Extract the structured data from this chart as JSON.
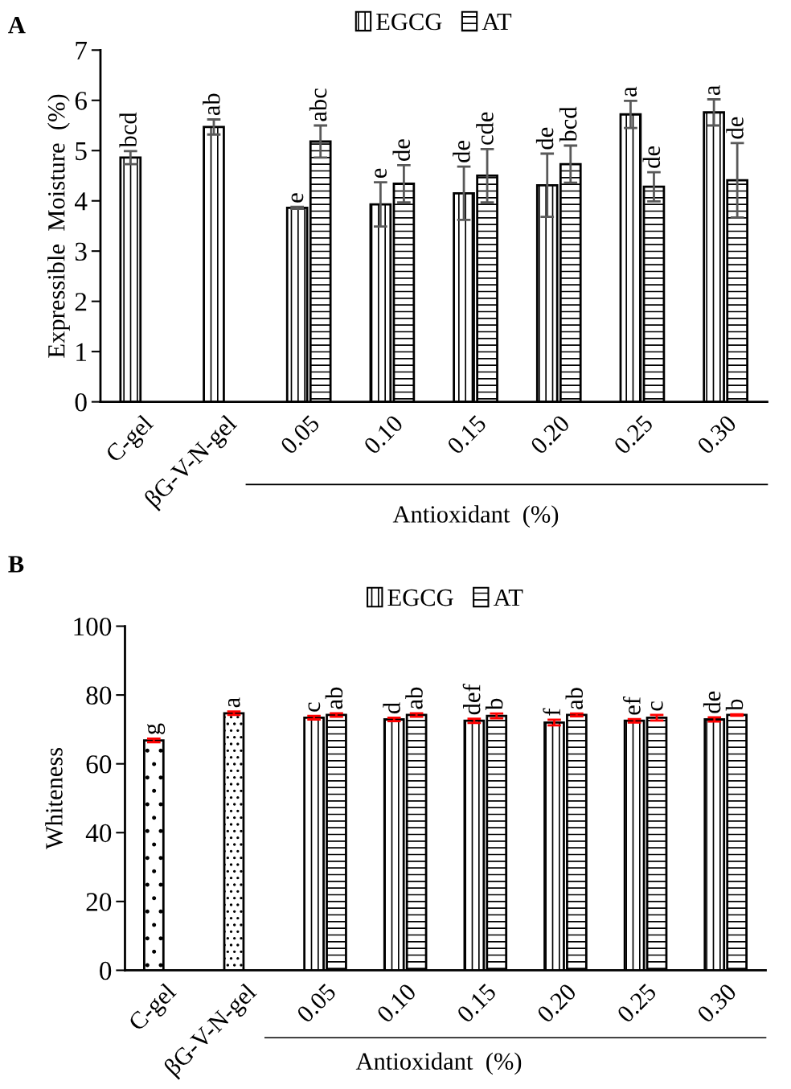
{
  "chart_data": [
    {
      "type": "bar",
      "title": "A",
      "ylabel": "Expressible  Moisture  (%)",
      "xlabel": "Antioxidant  (%)",
      "categories": [
        "C-gel",
        "βG-V-N-gel",
        "0.05",
        "0.10",
        "0.15",
        "0.20",
        "0.25",
        "0.30"
      ],
      "series": [
        {
          "name": "EGCG",
          "color": "#000000",
          "values": [
            4.86,
            5.47,
            3.86,
            3.93,
            4.15,
            4.31,
            5.72,
            5.76
          ],
          "errors": [
            0.13,
            0.15,
            0.02,
            0.44,
            0.53,
            0.63,
            0.27,
            0.26
          ],
          "value_labels": [
            "bcd",
            "ab",
            "e",
            "e",
            "de",
            "de",
            "a",
            "a"
          ]
        },
        {
          "name": "AT",
          "color": "#000000",
          "values": [
            null,
            null,
            5.18,
            4.34,
            4.5,
            4.73,
            4.28,
            4.41
          ],
          "errors": [
            null,
            null,
            0.32,
            0.37,
            0.53,
            0.37,
            0.29,
            0.74
          ],
          "value_labels": [
            null,
            null,
            "abc",
            "de",
            "cde",
            "bcd",
            "de",
            "de"
          ]
        }
      ],
      "ylim": [
        0,
        7
      ],
      "yticks": [
        0,
        1,
        2,
        3,
        4,
        5,
        6,
        7
      ],
      "legend": "top",
      "grid": false
    },
    {
      "type": "bar",
      "title": "B",
      "ylabel": "Whiteness",
      "xlabel": "Antioxidant  (%)",
      "categories": [
        "C-gel",
        "βG-V-N-gel",
        "0.05",
        "0.10",
        "0.15",
        "0.20",
        "0.25",
        "0.30"
      ],
      "series": [
        {
          "color": "#000000",
          "values": [
            66.8,
            74.7,
            null,
            null,
            null,
            null,
            null,
            null
          ],
          "errors": [
            0.5,
            0.5,
            null,
            null,
            null,
            null,
            null,
            null
          ],
          "value_labels": [
            "g",
            "a",
            null,
            null,
            null,
            null,
            null,
            null
          ]
        },
        {
          "name": "EGCG",
          "color": "#000000",
          "values": [
            null,
            null,
            73.4,
            72.9,
            72.5,
            72.0,
            72.5,
            72.9
          ],
          "errors": [
            null,
            null,
            0.5,
            0.5,
            0.6,
            0.8,
            0.5,
            0.6
          ],
          "value_labels": [
            null,
            null,
            "c",
            "d",
            "def",
            "f",
            "ef",
            "de"
          ]
        },
        {
          "name": "AT",
          "color": "#000000",
          "values": [
            null,
            null,
            74.2,
            74.2,
            73.9,
            74.2,
            73.4,
            74.2
          ],
          "errors": [
            null,
            null,
            0.5,
            0.5,
            0.7,
            0.4,
            0.8,
            0.2
          ],
          "value_labels": [
            null,
            null,
            "ab",
            "ab",
            "b",
            "ab",
            "c",
            "b"
          ]
        }
      ],
      "ylim": [
        0,
        100
      ],
      "yticks": [
        0,
        20,
        40,
        60,
        80,
        100
      ],
      "legend": "top",
      "grid": false
    }
  ]
}
